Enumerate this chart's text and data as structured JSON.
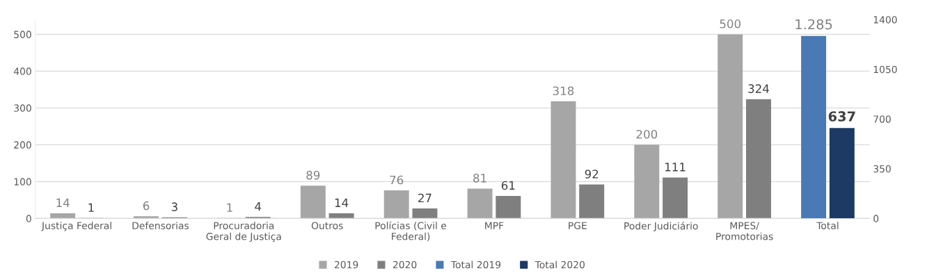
{
  "chart_data": {
    "type": "bar",
    "categories": [
      "Justiça Federal",
      "Defensorias",
      "Procuradoria\nGeral de Justiça",
      "Outros",
      "Polícias (Civil e\nFederal)",
      "MPF",
      "PGE",
      "Poder Judiciário",
      "MPES/\nPromotorias",
      "Total"
    ],
    "series": [
      {
        "name": "2019",
        "color": "#a6a6a6",
        "values": [
          14,
          6,
          1,
          89,
          76,
          81,
          318,
          200,
          500,
          null
        ],
        "value_labels": [
          "14",
          "6",
          "1",
          "89",
          "76",
          "81",
          "318",
          "200",
          "500",
          null
        ]
      },
      {
        "name": "2020",
        "color": "#7f7f7f",
        "values": [
          1,
          3,
          4,
          14,
          27,
          61,
          92,
          111,
          324,
          null
        ],
        "value_labels": [
          "1",
          "3",
          "4",
          "14",
          "27",
          "61",
          "92",
          "111",
          "324",
          null
        ]
      },
      {
        "name": "Total 2019",
        "color": "#4a7ab5",
        "axis": "y2",
        "values": [
          null,
          null,
          null,
          null,
          null,
          null,
          null,
          null,
          null,
          1285
        ],
        "value_labels": [
          null,
          null,
          null,
          null,
          null,
          null,
          null,
          null,
          null,
          "1.285"
        ]
      },
      {
        "name": "Total 2020",
        "color": "#1c3a63",
        "axis": "y2",
        "values": [
          null,
          null,
          null,
          null,
          null,
          null,
          null,
          null,
          null,
          637
        ],
        "value_labels": [
          null,
          null,
          null,
          null,
          null,
          null,
          null,
          null,
          null,
          "637"
        ]
      }
    ],
    "ylim": [
      0,
      540
    ],
    "yticks": [
      0,
      100,
      200,
      300,
      400,
      500
    ],
    "y2lim": [
      0,
      1400
    ],
    "y2ticks": [
      0,
      350,
      700,
      1050,
      1400
    ],
    "grid": "y",
    "legend": "bottom"
  }
}
